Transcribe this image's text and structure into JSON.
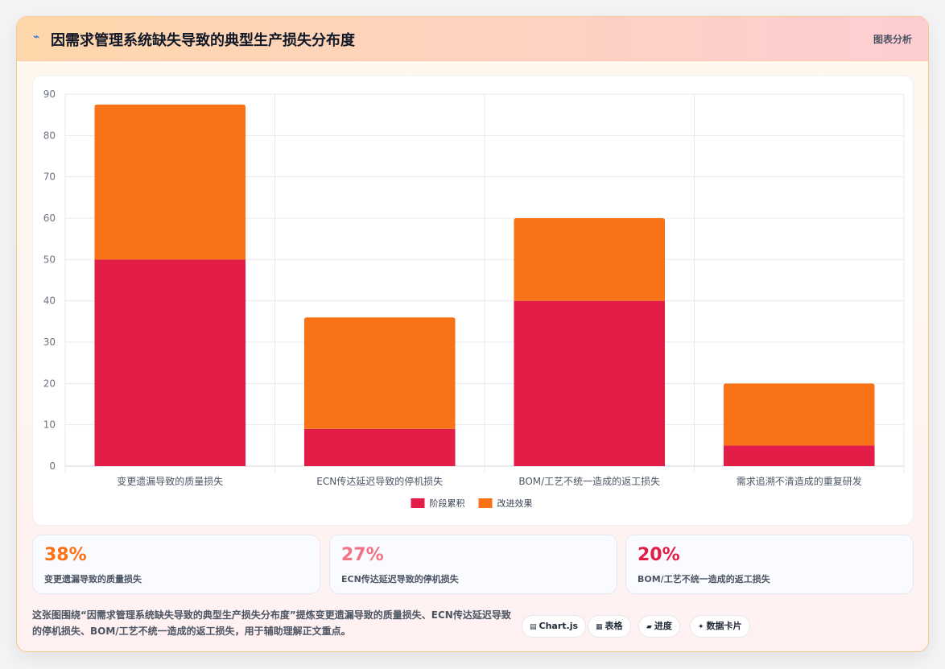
{
  "header": {
    "icon": "chart-icon",
    "title": "因需求管理系统缺失导致的典型生产损失分布度",
    "tag": "图表分析"
  },
  "chart_data": {
    "type": "bar",
    "stacked": true,
    "categories": [
      "变更遗漏导致的质量损失",
      "ECN传达延迟导致的停机损失",
      "BOM/工艺不统一造成的返工损失",
      "需求追溯不清造成的重复研发"
    ],
    "series": [
      {
        "name": "阶段累积",
        "color": "#e11d48",
        "values": [
          50,
          9,
          40,
          5
        ]
      },
      {
        "name": "改进效果",
        "color": "#f97316",
        "values": [
          37.5,
          27,
          20,
          15
        ]
      }
    ],
    "ylim": [
      0,
      90
    ],
    "yticks": [
      0,
      10,
      20,
      30,
      40,
      50,
      60,
      70,
      80,
      90
    ],
    "grid": true,
    "legend": "bottom-center",
    "title": "",
    "xlabel": "",
    "ylabel": ""
  },
  "stats": [
    {
      "value": "38%",
      "label": "变更遗漏导致的质量损失",
      "color": "#f97316"
    },
    {
      "value": "27%",
      "label": "ECN传达延迟导致的停机损失",
      "color": "#f17385"
    },
    {
      "value": "20%",
      "label": "BOM/工艺不统一造成的返工损失",
      "color": "#e11d48"
    }
  ],
  "footer": {
    "description": "这张图围绕“因需求管理系统缺失导致的典型生产损失分布度”提炼变更遗漏导致的质量损失、ECN传达延迟导致的停机损失、BOM/工艺不统一造成的返工损失，用于辅助理解正文重点。",
    "chips": [
      {
        "icon": "table-icon",
        "glyph": "▤",
        "label": "Chart.js"
      },
      {
        "icon": "grid-icon",
        "glyph": "▦",
        "label": "表格"
      },
      {
        "icon": "progress-icon",
        "glyph": "▰",
        "label": "进度"
      },
      {
        "icon": "sparkle-icon",
        "glyph": "✦",
        "label": "数据卡片"
      }
    ]
  }
}
